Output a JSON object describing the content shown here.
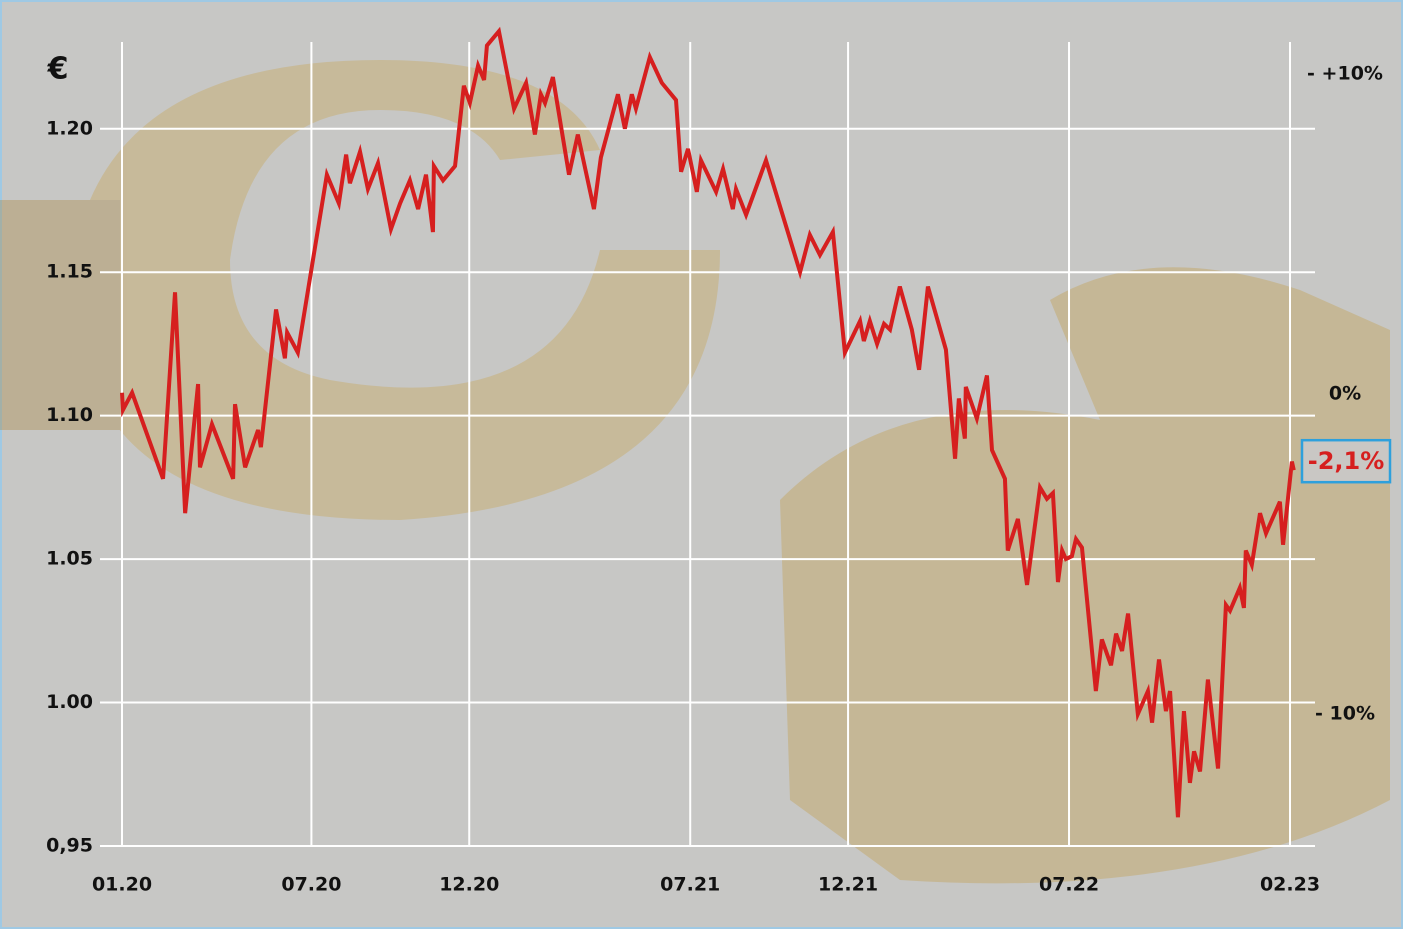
{
  "chart_data": {
    "type": "line",
    "y_label": "€",
    "x": [
      0,
      0.03,
      0.32,
      1.3,
      1.68,
      2.0,
      2.41,
      2.47,
      2.85,
      3.52,
      3.58,
      3.9,
      4.31,
      4.4,
      4.88,
      5.16,
      5.23,
      5.57,
      6.49,
      6.87,
      7.1,
      7.22,
      7.54,
      7.79,
      8.11,
      8.52,
      8.81,
      9.12,
      9.38,
      9.63,
      9.85,
      9.88,
      10.17,
      10.55,
      10.83,
      11.02,
      11.28,
      11.47,
      11.56,
      11.94,
      12.42,
      12.8,
      13.08,
      13.27,
      13.4,
      13.65,
      14.16,
      14.44,
      14.95,
      15.17,
      15.71,
      15.93,
      16.15,
      16.28,
      16.72,
      17.1,
      17.55,
      17.71,
      17.93,
      18.21,
      18.34,
      18.82,
      19.04,
      19.35,
      19.45,
      19.77,
      20.4,
      21.48,
      21.79,
      22.11,
      22.52,
      22.9,
      23.38,
      23.5,
      23.69,
      23.92,
      24.14,
      24.33,
      24.64,
      25.02,
      25.25,
      25.53,
      26.1,
      26.39,
      26.51,
      26.7,
      26.73,
      27.08,
      27.4,
      27.56,
      27.97,
      28.06,
      28.38,
      28.67,
      29.08,
      29.3,
      29.49,
      29.65,
      29.78,
      29.9,
      30.09,
      30.22,
      30.41,
      30.85,
      31.04,
      31.33,
      31.49,
      31.68,
      31.87,
      32.18,
      32.5,
      32.63,
      32.85,
      33.07,
      33.2,
      33.45,
      33.64,
      33.83,
      33.96,
      34.15,
      34.4,
      34.72,
      34.97,
      35.1,
      35.41,
      35.54,
      35.6,
      35.79,
      36.05,
      36.24,
      36.68,
      36.78,
      37.06,
      37.12
    ],
    "series": [
      {
        "color": "#d61f1f",
        "values": [
          1.108,
          1.102,
          1.108,
          1.078,
          1.143,
          1.066,
          1.111,
          1.082,
          1.097,
          1.078,
          1.104,
          1.082,
          1.095,
          1.089,
          1.137,
          1.12,
          1.129,
          1.122,
          1.184,
          1.174,
          1.191,
          1.181,
          1.192,
          1.179,
          1.188,
          1.165,
          1.174,
          1.182,
          1.172,
          1.184,
          1.164,
          1.187,
          1.182,
          1.187,
          1.215,
          1.209,
          1.222,
          1.217,
          1.229,
          1.234,
          1.207,
          1.216,
          1.198,
          1.212,
          1.209,
          1.218,
          1.184,
          1.198,
          1.172,
          1.19,
          1.212,
          1.2,
          1.212,
          1.207,
          1.225,
          1.216,
          1.21,
          1.185,
          1.193,
          1.178,
          1.189,
          1.178,
          1.186,
          1.172,
          1.179,
          1.17,
          1.189,
          1.15,
          1.163,
          1.156,
          1.164,
          1.122,
          1.133,
          1.126,
          1.133,
          1.125,
          1.132,
          1.13,
          1.145,
          1.13,
          1.116,
          1.145,
          1.123,
          1.085,
          1.106,
          1.092,
          1.11,
          1.099,
          1.114,
          1.088,
          1.078,
          1.053,
          1.064,
          1.041,
          1.075,
          1.071,
          1.073,
          1.042,
          1.053,
          1.05,
          1.051,
          1.057,
          1.054,
          1.004,
          1.022,
          1.013,
          1.024,
          1.018,
          1.031,
          0.996,
          1.004,
          0.993,
          1.015,
          0.997,
          1.004,
          0.96,
          0.997,
          0.972,
          0.983,
          0.976,
          1.008,
          0.977,
          1.034,
          1.032,
          1.04,
          1.033,
          1.053,
          1.048,
          1.066,
          1.059,
          1.07,
          1.055,
          1.084,
          1.081
        ]
      }
    ],
    "xlim": [
      0,
      37
    ],
    "xticks": [
      {
        "value": 0,
        "label": "01.20"
      },
      {
        "value": 6,
        "label": "07.20"
      },
      {
        "value": 11,
        "label": "12.20"
      },
      {
        "value": 18,
        "label": "07.21"
      },
      {
        "value": 23,
        "label": "12.21"
      },
      {
        "value": 30,
        "label": "07.22"
      },
      {
        "value": 37,
        "label": "02.23"
      }
    ],
    "ylim": [
      0.95,
      1.24
    ],
    "yticks": [
      {
        "value": 1.2,
        "label": "1.20"
      },
      1.15,
      {
        "value": 1.1,
        "label": "1.10"
      },
      1.05,
      {
        "value": 1,
        "label": "1.00"
      },
      {
        "value": 0.95,
        "label": "0,95"
      }
    ],
    "y2lim": [
      -14.125,
      11.875
    ],
    "y2ticks": [
      {
        "value": 10,
        "label": "- +10%"
      },
      {
        "value": 0,
        "label": "0%"
      },
      {
        "value": -10,
        "label": "- 10%"
      }
    ],
    "annotations": [
      {
        "text": "-2,1%",
        "y2": -2.1,
        "color": "#d61f1f"
      }
    ],
    "grid": true
  }
}
